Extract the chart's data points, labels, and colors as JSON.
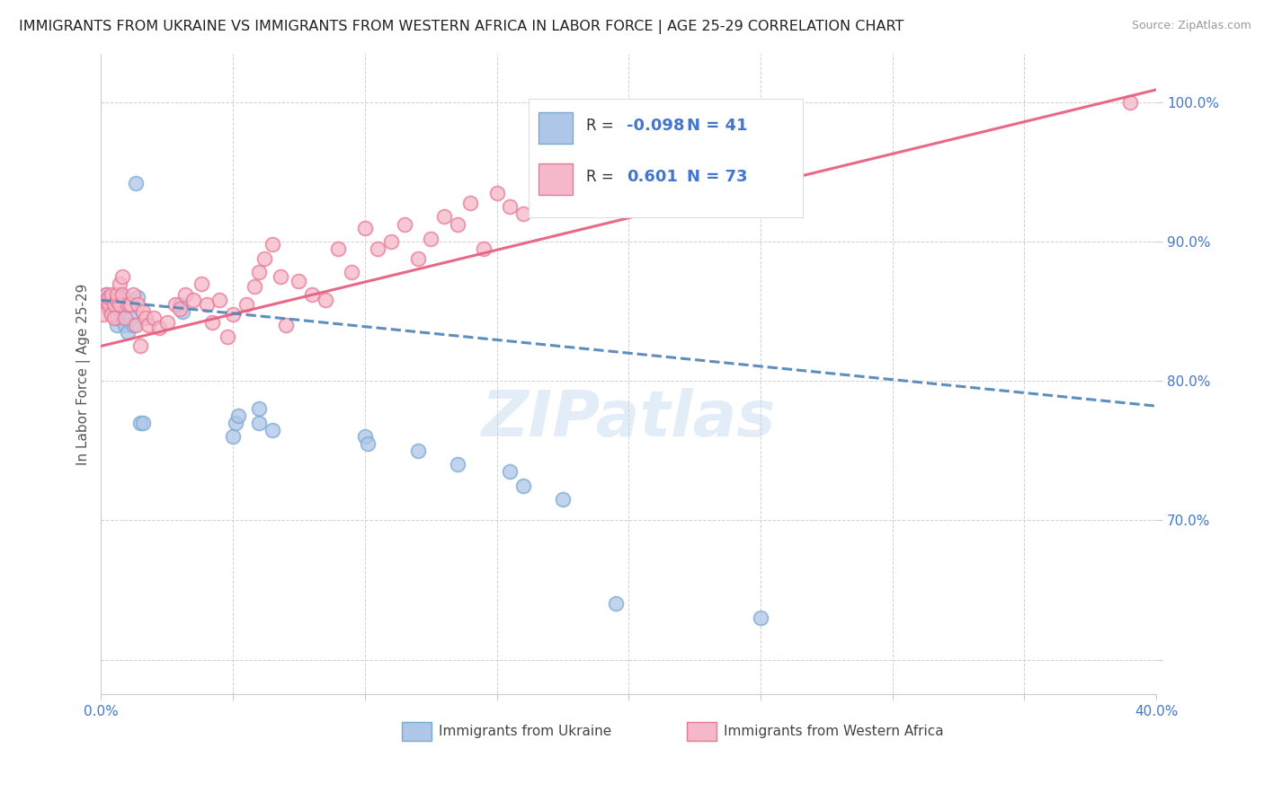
{
  "title": "IMMIGRANTS FROM UKRAINE VS IMMIGRANTS FROM WESTERN AFRICA IN LABOR FORCE | AGE 25-29 CORRELATION CHART",
  "source": "Source: ZipAtlas.com",
  "ylabel": "In Labor Force | Age 25-29",
  "x_min": 0.0,
  "x_max": 0.4,
  "y_min": 0.575,
  "y_max": 1.035,
  "x_ticks": [
    0.0,
    0.05,
    0.1,
    0.15,
    0.2,
    0.25,
    0.3,
    0.35,
    0.4
  ],
  "y_ticks": [
    0.6,
    0.7,
    0.8,
    0.9,
    1.0
  ],
  "ukraine_R": -0.098,
  "ukraine_N": 41,
  "western_africa_R": 0.601,
  "western_africa_N": 73,
  "ukraine_color": "#aec6e8",
  "western_africa_color": "#f5b8c8",
  "ukraine_edge_color": "#7aaad0",
  "western_africa_edge_color": "#e87898",
  "ukraine_line_color": "#5588bb",
  "western_africa_line_color": "#e86080",
  "legend_label_ukraine": "Immigrants from Ukraine",
  "legend_label_western_africa": "Immigrants from Western Africa",
  "watermark": "ZIPatlas",
  "ukraine_x": [
    0.001,
    0.001,
    0.002,
    0.002,
    0.003,
    0.003,
    0.004,
    0.004,
    0.005,
    0.005,
    0.006,
    0.006,
    0.007,
    0.007,
    0.008,
    0.008,
    0.009,
    0.01,
    0.011,
    0.012,
    0.013,
    0.014,
    0.015,
    0.016,
    0.03,
    0.031,
    0.05,
    0.051,
    0.052,
    0.06,
    0.06,
    0.065,
    0.1,
    0.101,
    0.12,
    0.135,
    0.155,
    0.16,
    0.175,
    0.195,
    0.25
  ],
  "ukraine_y": [
    0.86,
    0.855,
    0.862,
    0.858,
    0.855,
    0.852,
    0.85,
    0.86,
    0.855,
    0.848,
    0.84,
    0.845,
    0.862,
    0.85,
    0.858,
    0.845,
    0.84,
    0.835,
    0.845,
    0.84,
    0.942,
    0.86,
    0.77,
    0.77,
    0.855,
    0.85,
    0.76,
    0.77,
    0.775,
    0.77,
    0.78,
    0.765,
    0.76,
    0.755,
    0.75,
    0.74,
    0.735,
    0.725,
    0.715,
    0.64,
    0.63
  ],
  "western_africa_x": [
    0.001,
    0.001,
    0.002,
    0.002,
    0.003,
    0.003,
    0.004,
    0.004,
    0.005,
    0.005,
    0.006,
    0.006,
    0.007,
    0.007,
    0.008,
    0.008,
    0.009,
    0.01,
    0.011,
    0.012,
    0.013,
    0.014,
    0.015,
    0.016,
    0.017,
    0.018,
    0.02,
    0.022,
    0.025,
    0.028,
    0.03,
    0.032,
    0.035,
    0.038,
    0.04,
    0.042,
    0.045,
    0.048,
    0.05,
    0.055,
    0.058,
    0.06,
    0.062,
    0.065,
    0.068,
    0.07,
    0.075,
    0.08,
    0.085,
    0.09,
    0.095,
    0.1,
    0.105,
    0.11,
    0.115,
    0.12,
    0.125,
    0.13,
    0.135,
    0.14,
    0.145,
    0.15,
    0.155,
    0.16,
    0.165,
    0.17,
    0.175,
    0.18,
    0.185,
    0.19,
    0.2,
    0.21,
    0.39
  ],
  "western_africa_y": [
    0.855,
    0.848,
    0.862,
    0.858,
    0.855,
    0.86,
    0.862,
    0.848,
    0.855,
    0.845,
    0.858,
    0.862,
    0.855,
    0.87,
    0.875,
    0.862,
    0.845,
    0.855,
    0.855,
    0.862,
    0.84,
    0.855,
    0.825,
    0.85,
    0.845,
    0.84,
    0.845,
    0.838,
    0.842,
    0.855,
    0.852,
    0.862,
    0.858,
    0.87,
    0.855,
    0.842,
    0.858,
    0.832,
    0.848,
    0.855,
    0.868,
    0.878,
    0.888,
    0.898,
    0.875,
    0.84,
    0.872,
    0.862,
    0.858,
    0.895,
    0.878,
    0.91,
    0.895,
    0.9,
    0.912,
    0.888,
    0.902,
    0.918,
    0.912,
    0.928,
    0.895,
    0.935,
    0.925,
    0.92,
    0.94,
    0.945,
    0.955,
    0.945,
    0.96,
    0.958,
    0.968,
    0.975,
    1.0
  ]
}
